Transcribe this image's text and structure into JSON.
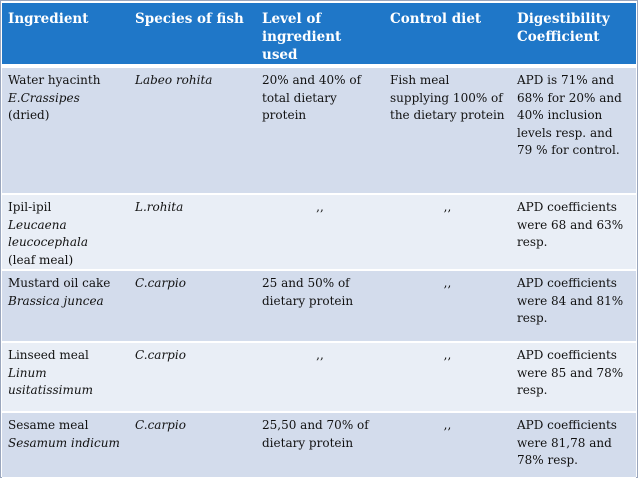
{
  "headers": [
    "Ingredient",
    "Species of fish",
    "Level of ingredient used",
    "Control diet",
    "Digestibility Coefficient"
  ],
  "rows": [
    {
      "ingredient": "Water hyacinth",
      "scientific": "E.Crassipes",
      "note": "(dried)",
      "species": "Labeo rohita",
      "level": "20% and 40% of total dietary protein",
      "control": "Fish meal supplying 100% of the dietary protein",
      "digestibility": "APD is 71% and 68% for 20% and 40% inclusion levels resp. and 79 % for control."
    },
    {
      "ingredient": "Ipil-ipil",
      "scientific": "Leucaena leucocephala",
      "note": "(leaf meal)",
      "species": "L.rohita",
      "level": ",,",
      "control": ",,",
      "digestibility": "APD coefficients were 68 and 63% resp."
    },
    {
      "ingredient": "Mustard oil cake",
      "scientific": "Brassica juncea",
      "note": "",
      "species": "C.carpio",
      "level": "25 and 50% of dietary protein",
      "control": ",,",
      "digestibility": "APD coefficients were 84 and 81% resp."
    },
    {
      "ingredient": "Linseed meal",
      "scientific": "Linum usitatissimum",
      "note": "",
      "species": "C.carpio",
      "level": ",,",
      "control": ",,",
      "digestibility": "APD coefficients were 85 and 78% resp."
    },
    {
      "ingredient": "Sesame meal",
      "scientific": "Sesamum indicum",
      "note": "",
      "species": "C.carpio",
      "level": "25,50 and 70% of dietary protein",
      "control": ",,",
      "digestibility": "APD coefficients were 81,78 and 78% resp."
    }
  ]
}
